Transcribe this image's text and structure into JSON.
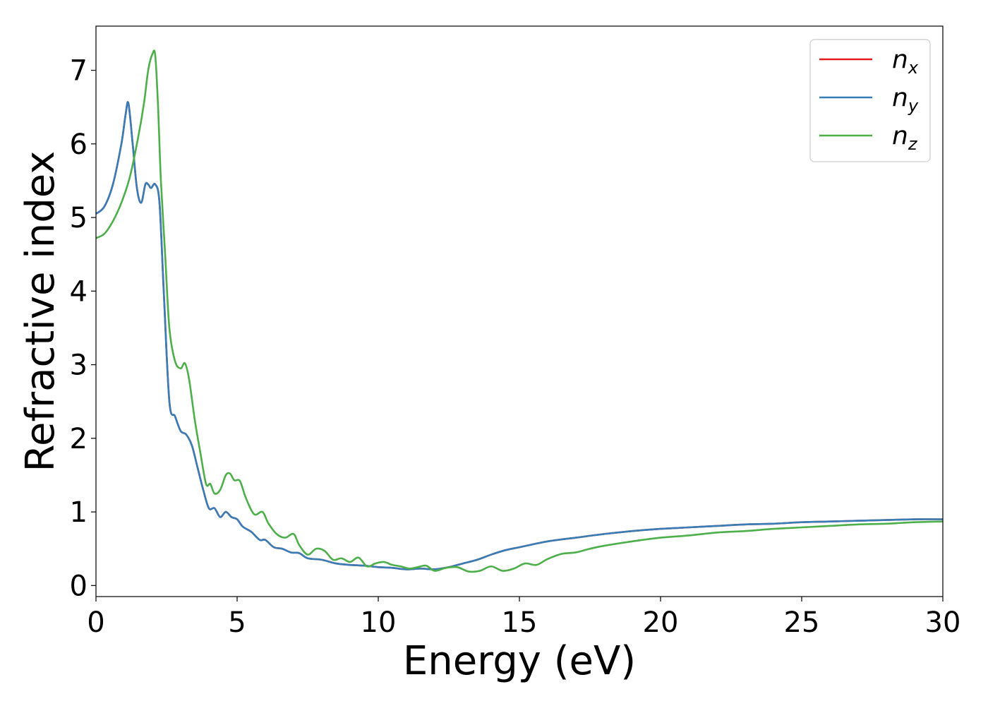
{
  "chart_data": {
    "type": "line",
    "xlabel": "Energy (eV)",
    "ylabel": "Refractive index",
    "xlim": [
      0,
      30
    ],
    "ylim": [
      -0.15,
      7.6
    ],
    "xticks": [
      0,
      5,
      10,
      15,
      20,
      25,
      30
    ],
    "yticks": [
      0,
      1,
      2,
      3,
      4,
      5,
      6,
      7
    ],
    "grid": false,
    "legend_position": "top-right",
    "series": [
      {
        "name": "n",
        "sub": "x",
        "color": "#e41a1c",
        "x": [
          0,
          0.3,
          0.6,
          0.9,
          1.05,
          1.15,
          1.3,
          1.45,
          1.6,
          1.75,
          1.85,
          1.95,
          2.1,
          2.25,
          2.4,
          2.6,
          2.8,
          3.0,
          3.2,
          3.4,
          3.6,
          3.8,
          4.0,
          4.2,
          4.4,
          4.6,
          4.8,
          5.0,
          5.2,
          5.5,
          5.8,
          6.0,
          6.3,
          6.6,
          6.9,
          7.2,
          7.5,
          8.0,
          8.5,
          9.0,
          9.5,
          10.0,
          10.5,
          11.0,
          11.5,
          12.0,
          12.5,
          13.0,
          13.5,
          14.0,
          14.5,
          15.0,
          16.0,
          17.0,
          18.0,
          19.0,
          20.0,
          21.0,
          22.0,
          23.0,
          24.0,
          25.0,
          26.0,
          27.0,
          28.0,
          29.0,
          30.0
        ],
        "values": [
          5.05,
          5.15,
          5.45,
          6.0,
          6.4,
          6.55,
          6.0,
          5.4,
          5.2,
          5.45,
          5.45,
          5.4,
          5.45,
          5.2,
          4.0,
          2.5,
          2.3,
          2.1,
          2.05,
          1.9,
          1.6,
          1.3,
          1.05,
          1.05,
          0.93,
          1.0,
          0.93,
          0.9,
          0.8,
          0.73,
          0.62,
          0.62,
          0.52,
          0.5,
          0.45,
          0.44,
          0.37,
          0.35,
          0.3,
          0.28,
          0.27,
          0.25,
          0.24,
          0.22,
          0.23,
          0.22,
          0.25,
          0.3,
          0.35,
          0.42,
          0.48,
          0.52,
          0.6,
          0.65,
          0.7,
          0.74,
          0.77,
          0.79,
          0.81,
          0.83,
          0.84,
          0.86,
          0.87,
          0.88,
          0.89,
          0.9,
          0.9
        ]
      },
      {
        "name": "n",
        "sub": "y",
        "color": "#377eb8",
        "x": [
          0,
          0.3,
          0.6,
          0.9,
          1.05,
          1.15,
          1.3,
          1.45,
          1.6,
          1.75,
          1.85,
          1.95,
          2.1,
          2.25,
          2.4,
          2.6,
          2.8,
          3.0,
          3.2,
          3.4,
          3.6,
          3.8,
          4.0,
          4.2,
          4.4,
          4.6,
          4.8,
          5.0,
          5.2,
          5.5,
          5.8,
          6.0,
          6.3,
          6.6,
          6.9,
          7.2,
          7.5,
          8.0,
          8.5,
          9.0,
          9.5,
          10.0,
          10.5,
          11.0,
          11.5,
          12.0,
          12.5,
          13.0,
          13.5,
          14.0,
          14.5,
          15.0,
          16.0,
          17.0,
          18.0,
          19.0,
          20.0,
          21.0,
          22.0,
          23.0,
          24.0,
          25.0,
          26.0,
          27.0,
          28.0,
          29.0,
          30.0
        ],
        "values": [
          5.05,
          5.15,
          5.45,
          6.0,
          6.4,
          6.55,
          6.0,
          5.4,
          5.2,
          5.45,
          5.45,
          5.4,
          5.45,
          5.2,
          4.0,
          2.5,
          2.3,
          2.1,
          2.05,
          1.9,
          1.6,
          1.3,
          1.05,
          1.05,
          0.93,
          1.0,
          0.93,
          0.9,
          0.8,
          0.73,
          0.62,
          0.62,
          0.52,
          0.5,
          0.45,
          0.44,
          0.37,
          0.35,
          0.3,
          0.28,
          0.27,
          0.25,
          0.24,
          0.22,
          0.23,
          0.22,
          0.25,
          0.3,
          0.35,
          0.42,
          0.48,
          0.52,
          0.6,
          0.65,
          0.7,
          0.74,
          0.77,
          0.79,
          0.81,
          0.83,
          0.84,
          0.86,
          0.87,
          0.88,
          0.89,
          0.9,
          0.9
        ]
      },
      {
        "name": "n",
        "sub": "z",
        "color": "#4daf4a",
        "x": [
          0,
          0.3,
          0.6,
          0.9,
          1.2,
          1.5,
          1.7,
          1.85,
          2.0,
          2.1,
          2.2,
          2.3,
          2.45,
          2.6,
          2.8,
          3.0,
          3.15,
          3.3,
          3.5,
          3.7,
          3.9,
          4.05,
          4.2,
          4.4,
          4.6,
          4.75,
          4.9,
          5.1,
          5.3,
          5.6,
          5.9,
          6.1,
          6.4,
          6.7,
          7.0,
          7.2,
          7.5,
          7.8,
          8.1,
          8.4,
          8.7,
          9.0,
          9.3,
          9.6,
          9.9,
          10.2,
          10.5,
          10.8,
          11.1,
          11.4,
          11.7,
          12.0,
          12.4,
          12.8,
          13.2,
          13.6,
          14.0,
          14.4,
          14.8,
          15.2,
          15.6,
          16.0,
          16.5,
          17.0,
          17.5,
          18.0,
          19.0,
          20.0,
          21.0,
          22.0,
          23.0,
          24.0,
          25.0,
          26.0,
          27.0,
          28.0,
          29.0,
          30.0
        ],
        "values": [
          4.72,
          4.78,
          4.95,
          5.2,
          5.55,
          6.1,
          6.55,
          7.0,
          7.22,
          7.2,
          6.5,
          5.5,
          4.5,
          3.5,
          3.05,
          2.95,
          3.02,
          2.8,
          2.25,
          1.8,
          1.38,
          1.38,
          1.25,
          1.3,
          1.5,
          1.52,
          1.43,
          1.42,
          1.2,
          0.97,
          1.0,
          0.85,
          0.7,
          0.65,
          0.7,
          0.55,
          0.42,
          0.5,
          0.47,
          0.35,
          0.37,
          0.32,
          0.38,
          0.26,
          0.3,
          0.32,
          0.28,
          0.26,
          0.23,
          0.25,
          0.27,
          0.2,
          0.24,
          0.25,
          0.19,
          0.2,
          0.26,
          0.2,
          0.23,
          0.3,
          0.28,
          0.36,
          0.43,
          0.45,
          0.5,
          0.54,
          0.6,
          0.65,
          0.68,
          0.72,
          0.74,
          0.77,
          0.79,
          0.81,
          0.83,
          0.84,
          0.86,
          0.87
        ]
      }
    ]
  }
}
